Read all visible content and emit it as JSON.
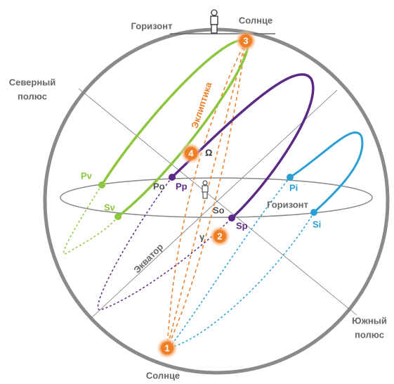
{
  "labels": {
    "horizon_top": "Горизонт",
    "sun_top": "Солнце",
    "north_pole": [
      "Северный",
      "полюс"
    ],
    "ecliptic": "Эклиптика",
    "omega": "Ω",
    "pv": "Pv",
    "sv": "Sv",
    "po": "Po",
    "pp": "Pp",
    "so": "So",
    "sp": "Sp",
    "pi": "Pi",
    "si": "Si",
    "horizon_right": "Горизонт",
    "equator": "Экватор",
    "gamma": "γ",
    "south_pole": [
      "Южный",
      "полюс"
    ],
    "sun_bottom": "Солнце"
  },
  "markers": [
    "1",
    "2",
    "3",
    "4"
  ]
}
